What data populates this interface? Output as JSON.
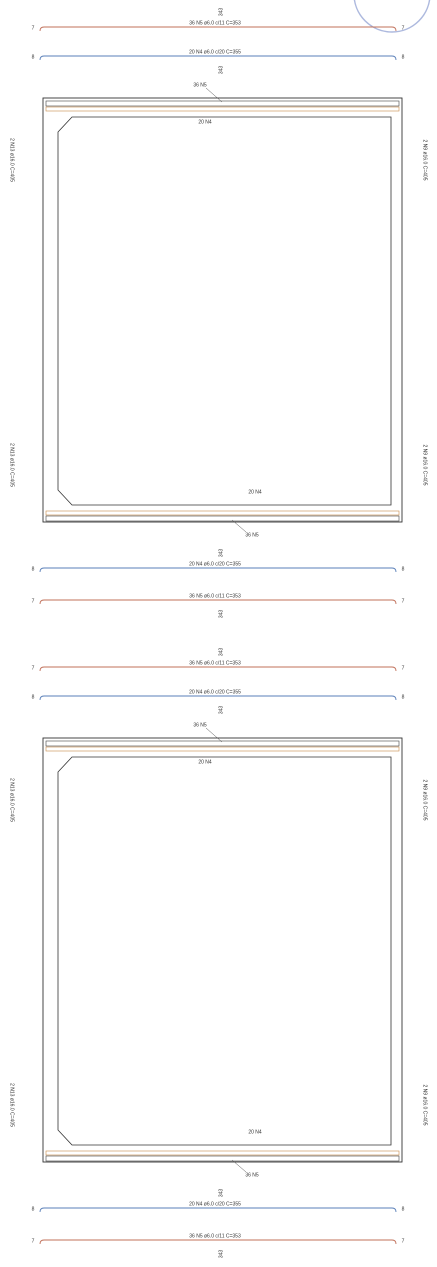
{
  "panels": [
    {
      "bars_above": [
        {
          "label": "36 N5 ø6.0 c/11 C=353",
          "dim": "343",
          "end_left": "7",
          "end_right": "7"
        },
        {
          "label": "20 N4 ø6.0 c/20 C=355",
          "dim": "343",
          "end_left": "8",
          "end_right": "8"
        }
      ],
      "top_n5": "36 N5",
      "top_n4": "20 N4",
      "left_top": "2 N13 ø16.0 C=405",
      "left_bottom": "2 N13 ø16.0 C=405",
      "right_top": "2 N9 ø16.0 C=405",
      "right_bottom": "2 N9 ø16.0 C=405",
      "bottom_n4": "20 N4",
      "bottom_n5": "36 N5",
      "bars_below": [
        {
          "label": "20 N4 ø6.0 c/20 C=355",
          "dim": "343",
          "end_left": "8",
          "end_right": "8"
        },
        {
          "label": "36 N5 ø6.0 c/11 C=353",
          "dim": "343",
          "end_left": "7",
          "end_right": "7"
        }
      ]
    },
    {
      "bars_above": [
        {
          "label": "36 N5 ø6.0 c/11 C=353",
          "dim": "343",
          "end_left": "7",
          "end_right": "7"
        },
        {
          "label": "20 N4 ø6.0 c/20 C=355",
          "dim": "343",
          "end_left": "8",
          "end_right": "8"
        }
      ],
      "top_n5": "36 N5",
      "top_n4": "20 N4",
      "left_top": "2 N13 ø16.0 C=405",
      "left_bottom": "2 N13 ø16.0 C=405",
      "right_top": "2 N9 ø16.0 C=405",
      "right_bottom": "2 N9 ø16.0 C=405",
      "bottom_n4": "20 N4",
      "bottom_n5": "36 N5",
      "bars_below": [
        {
          "label": "20 N4 ø6.0 c/20 C=355",
          "dim": "343",
          "end_left": "8",
          "end_right": "8"
        },
        {
          "label": "36 N5 ø6.0 c/11 C=353",
          "dim": "343",
          "end_left": "7",
          "end_right": "7"
        }
      ]
    }
  ]
}
